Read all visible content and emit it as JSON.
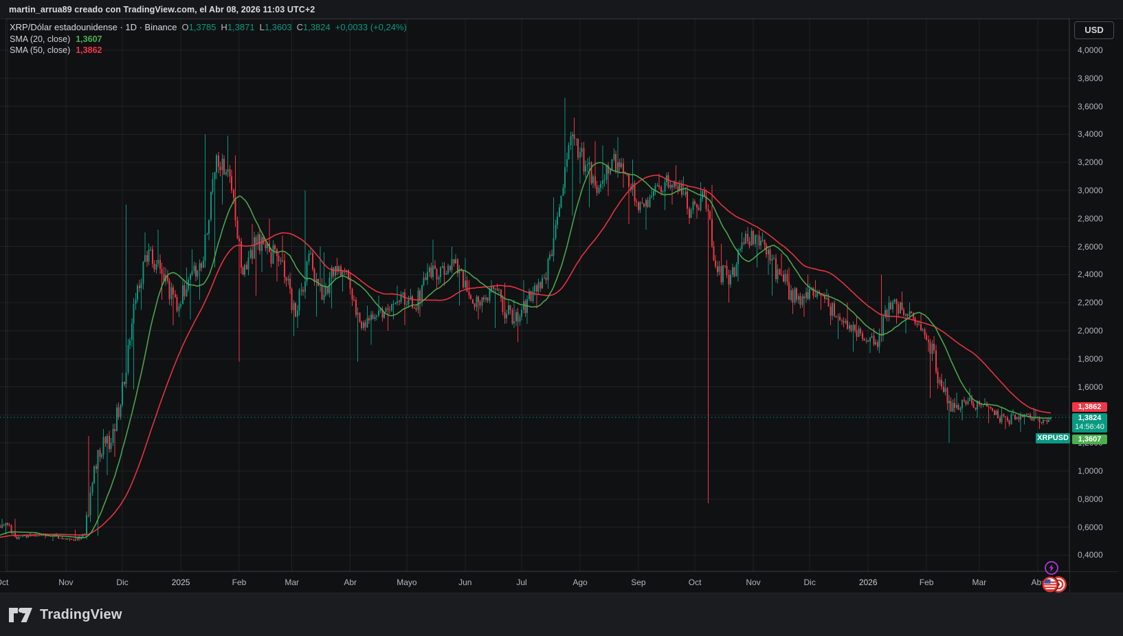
{
  "attribution": {
    "text": "martin_arrua89 creado con TradingView.com, el Abr 08, 2026 11:03 UTC+2"
  },
  "legend": {
    "title": "XRP/Dólar estadounidense · 1D · Binance",
    "ohlc": {
      "o_label": "O",
      "o": "1,3785",
      "h_label": "H",
      "h": "1,3871",
      "l_label": "L",
      "l": "1,3603",
      "c_label": "C",
      "c": "1,3824",
      "change": "+0,0033 (+0,24%)"
    },
    "sma20": {
      "label": "SMA (20, close)",
      "value": "1,3607"
    },
    "sma50": {
      "label": "SMA (50, close)",
      "value": "1,3862"
    }
  },
  "price_axis": {
    "currency": "USD",
    "ticks": [
      {
        "value": 4.0,
        "label": "4,0000"
      },
      {
        "value": 3.8,
        "label": "3,8000"
      },
      {
        "value": 3.6,
        "label": "3,6000"
      },
      {
        "value": 3.4,
        "label": "3,4000"
      },
      {
        "value": 3.2,
        "label": "3,2000"
      },
      {
        "value": 3.0,
        "label": "3,0000"
      },
      {
        "value": 2.8,
        "label": "2,8000"
      },
      {
        "value": 2.6,
        "label": "2,6000"
      },
      {
        "value": 2.4,
        "label": "2,4000"
      },
      {
        "value": 2.2,
        "label": "2,2000"
      },
      {
        "value": 2.0,
        "label": "2,0000"
      },
      {
        "value": 1.8,
        "label": "1,8000"
      },
      {
        "value": 1.6,
        "label": "1,6000"
      },
      {
        "value": 1.2,
        "label": "1,2000"
      },
      {
        "value": 1.0,
        "label": "1,0000"
      },
      {
        "value": 0.8,
        "label": "0,8000"
      },
      {
        "value": 0.6,
        "label": "0,6000"
      },
      {
        "value": 0.4,
        "label": "0,4000"
      }
    ],
    "labels": {
      "sma50": "1,3862",
      "last": "1,3824",
      "countdown": "14:56:40",
      "sma20": "1,3607",
      "symbol_tag": "XRPUSD"
    }
  },
  "time_axis": {
    "labels": [
      {
        "text": "Oct",
        "day": 0
      },
      {
        "text": "Nov",
        "day": 31
      },
      {
        "text": "Dic",
        "day": 61
      },
      {
        "text": "2025",
        "day": 92
      },
      {
        "text": "Feb",
        "day": 123
      },
      {
        "text": "Mar",
        "day": 151
      },
      {
        "text": "Abr",
        "day": 182
      },
      {
        "text": "Mayo",
        "day": 212
      },
      {
        "text": "Jun",
        "day": 243
      },
      {
        "text": "Jul",
        "day": 273
      },
      {
        "text": "Ago",
        "day": 304
      },
      {
        "text": "Sep",
        "day": 335
      },
      {
        "text": "Oct",
        "day": 365
      },
      {
        "text": "Nov",
        "day": 396
      },
      {
        "text": "Dic",
        "day": 426
      },
      {
        "text": "2026",
        "day": 457
      },
      {
        "text": "Feb",
        "day": 488
      },
      {
        "text": "Mar",
        "day": 516
      },
      {
        "text": "Abr",
        "day": 547
      }
    ]
  },
  "footer": {
    "brand": "TradingView"
  },
  "colors": {
    "up": "#089981",
    "down": "#f23645",
    "sma20_line": "#4caf50",
    "sma50_line": "#f23645",
    "last_price_line": "#089981",
    "label_red_bg": "#f23645",
    "label_teal_bg": "#089981",
    "label_green_bg": "#4caf50",
    "axis_text": "#b2b5be",
    "grid": "rgba(255,255,255,0.07)"
  },
  "chart_data": {
    "type": "candlestick",
    "title": "XRP/Dólar estadounidense",
    "symbol": "XRPUSD",
    "exchange": "Binance",
    "interval": "1D",
    "x_range": "Oct 2024 - Abr 2026",
    "y_range": [
      0.28,
      4.22
    ],
    "grid": true,
    "last_close": 1.3824,
    "today_ohlc": [
      1.3785,
      1.3871,
      1.3603,
      1.3824
    ],
    "change_abs": "+0,0033",
    "change_pct": "+0,24%",
    "indicators": [
      {
        "name": "SMA 20",
        "last": 1.3607,
        "color": "#4caf50"
      },
      {
        "name": "SMA 50",
        "last": 1.3862,
        "color": "#f23645"
      }
    ],
    "weekly_ohlc": [
      [
        0.61,
        0.66,
        0.55,
        0.63
      ],
      [
        0.63,
        0.66,
        0.51,
        0.53
      ],
      [
        0.53,
        0.56,
        0.52,
        0.54
      ],
      [
        0.54,
        0.56,
        0.52,
        0.55
      ],
      [
        0.55,
        0.56,
        0.5,
        0.52
      ],
      [
        0.52,
        0.54,
        0.5,
        0.51
      ],
      [
        0.51,
        0.58,
        0.5,
        0.55
      ],
      [
        0.55,
        1.25,
        0.54,
        1.15
      ],
      [
        1.15,
        1.3,
        0.97,
        1.2
      ],
      [
        1.2,
        1.7,
        1.1,
        1.62
      ],
      [
        1.62,
        2.9,
        1.58,
        2.32
      ],
      [
        2.32,
        2.7,
        2.15,
        2.58
      ],
      [
        2.58,
        2.72,
        2.22,
        2.35
      ],
      [
        2.35,
        2.45,
        2.04,
        2.14
      ],
      [
        2.14,
        2.45,
        2.08,
        2.4
      ],
      [
        2.4,
        2.58,
        2.22,
        2.5
      ],
      [
        2.5,
        3.4,
        2.45,
        3.25
      ],
      [
        3.25,
        3.39,
        2.9,
        3.1
      ],
      [
        3.1,
        3.25,
        1.78,
        2.4
      ],
      [
        2.4,
        2.76,
        2.25,
        2.62
      ],
      [
        2.62,
        2.8,
        2.42,
        2.56
      ],
      [
        2.56,
        2.68,
        2.35,
        2.5
      ],
      [
        2.5,
        2.55,
        1.96,
        2.1
      ],
      [
        2.1,
        3.0,
        2.02,
        2.55
      ],
      [
        2.55,
        2.6,
        2.1,
        2.22
      ],
      [
        2.22,
        2.56,
        2.16,
        2.46
      ],
      [
        2.46,
        2.52,
        2.28,
        2.38
      ],
      [
        2.38,
        2.42,
        1.78,
        2.02
      ],
      [
        2.02,
        2.18,
        1.9,
        2.1
      ],
      [
        2.1,
        2.25,
        2.0,
        2.15
      ],
      [
        2.15,
        2.32,
        2.08,
        2.26
      ],
      [
        2.26,
        2.3,
        2.04,
        2.16
      ],
      [
        2.16,
        2.48,
        2.1,
        2.42
      ],
      [
        2.42,
        2.65,
        2.3,
        2.45
      ],
      [
        2.45,
        2.6,
        2.32,
        2.48
      ],
      [
        2.48,
        2.52,
        2.18,
        2.28
      ],
      [
        2.28,
        2.36,
        2.08,
        2.18
      ],
      [
        2.18,
        2.36,
        2.13,
        2.3
      ],
      [
        2.3,
        2.34,
        2.02,
        2.12
      ],
      [
        2.12,
        2.22,
        1.92,
        2.1
      ],
      [
        2.1,
        2.36,
        2.05,
        2.28
      ],
      [
        2.28,
        2.42,
        2.16,
        2.36
      ],
      [
        2.36,
        2.95,
        2.3,
        2.88
      ],
      [
        2.88,
        3.66,
        2.82,
        3.4
      ],
      [
        3.4,
        3.52,
        3.05,
        3.18
      ],
      [
        3.18,
        3.35,
        2.88,
        3.02
      ],
      [
        3.02,
        3.32,
        2.96,
        3.22
      ],
      [
        3.22,
        3.38,
        3.02,
        3.12
      ],
      [
        3.12,
        3.22,
        2.76,
        2.86
      ],
      [
        2.86,
        3.02,
        2.72,
        2.96
      ],
      [
        2.96,
        3.12,
        2.86,
        3.06
      ],
      [
        3.06,
        3.18,
        2.9,
        3.0
      ],
      [
        3.0,
        3.1,
        2.76,
        2.86
      ],
      [
        2.86,
        3.06,
        2.8,
        2.96
      ],
      [
        2.96,
        3.04,
        0.77,
        2.42
      ],
      [
        2.42,
        2.62,
        2.2,
        2.4
      ],
      [
        2.4,
        2.7,
        2.35,
        2.62
      ],
      [
        2.62,
        2.74,
        2.45,
        2.68
      ],
      [
        2.68,
        2.7,
        2.4,
        2.5
      ],
      [
        2.5,
        2.55,
        2.25,
        2.35
      ],
      [
        2.35,
        2.45,
        2.12,
        2.22
      ],
      [
        2.22,
        2.4,
        2.1,
        2.3
      ],
      [
        2.3,
        2.36,
        2.15,
        2.25
      ],
      [
        2.25,
        2.3,
        2.04,
        2.1
      ],
      [
        2.1,
        2.2,
        1.94,
        2.04
      ],
      [
        2.04,
        2.1,
        1.85,
        1.94
      ],
      [
        1.94,
        2.02,
        1.84,
        1.92
      ],
      [
        1.92,
        2.4,
        1.86,
        2.2
      ],
      [
        2.2,
        2.28,
        2.05,
        2.15
      ],
      [
        2.15,
        2.2,
        1.98,
        2.05
      ],
      [
        2.05,
        2.12,
        1.85,
        1.92
      ],
      [
        1.92,
        1.96,
        1.52,
        1.6
      ],
      [
        1.6,
        1.66,
        1.2,
        1.45
      ],
      [
        1.45,
        1.56,
        1.36,
        1.5
      ],
      [
        1.5,
        1.59,
        1.38,
        1.47
      ],
      [
        1.47,
        1.52,
        1.34,
        1.4
      ],
      [
        1.4,
        1.46,
        1.3,
        1.36
      ],
      [
        1.36,
        1.44,
        1.28,
        1.4
      ],
      [
        1.4,
        1.45,
        1.33,
        1.38
      ],
      [
        1.38,
        1.44,
        1.3,
        1.35
      ],
      [
        1.35,
        1.3871,
        1.3603,
        1.3824
      ]
    ]
  }
}
